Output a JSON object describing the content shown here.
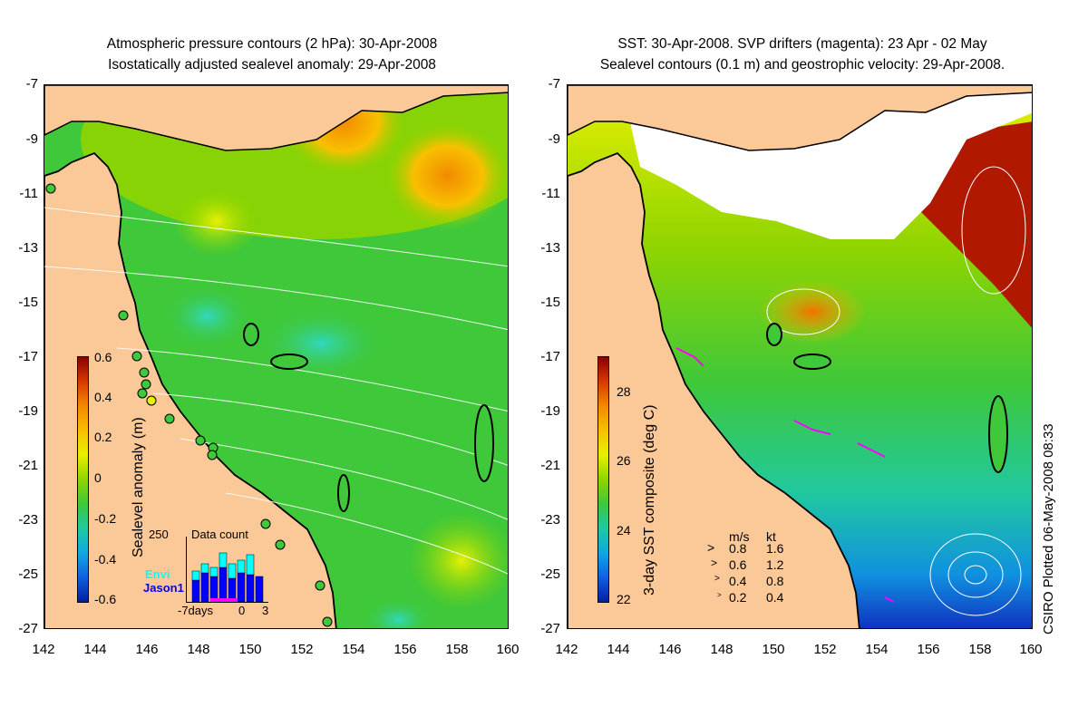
{
  "left_panel": {
    "title_line1": "Atmospheric pressure contours (2 hPa): 30-Apr-2008",
    "title_line2": "Isostatically adjusted sealevel anomaly: 29-Apr-2008",
    "colorbar_title": "Sealevel anomaly (m)",
    "colorbar_ticks": [
      "0.6",
      "0.4",
      "0.2",
      "0",
      "-0.2",
      "-0.4",
      "-0.6"
    ],
    "inset": {
      "title": "Data count",
      "ymax": "250",
      "legend_envi": "Envi",
      "legend_jason": "Jason1",
      "xlabel_left": "-7days",
      "xlabel_mid": "0",
      "xlabel_right": "3",
      "envi_color": "#00ffff",
      "jason_color": "#0000ff"
    }
  },
  "right_panel": {
    "title_line1": "SST: 30-Apr-2008. SVP drifters (magenta): 23 Apr - 02 May",
    "title_line2": "Sealevel contours (0.1 m) and geostrophic velocity: 29-Apr-2008.",
    "colorbar_title": "3-day SST composite (deg C)",
    "colorbar_ticks": [
      "28",
      "26",
      "24",
      "22"
    ],
    "velocity_legend": {
      "header_ms": "m/s",
      "header_kt": "kt",
      "rows": [
        {
          "ms": "0.8",
          "kt": "1.6"
        },
        {
          "ms": "0.6",
          "kt": "1.2"
        },
        {
          "ms": "0.4",
          "kt": "0.8"
        },
        {
          "ms": "0.2",
          "kt": "0.4"
        }
      ]
    }
  },
  "axes": {
    "y_ticks": [
      "-7",
      "-9",
      "-11",
      "-13",
      "-15",
      "-17",
      "-19",
      "-21",
      "-23",
      "-25",
      "-27"
    ],
    "x_ticks": [
      "142",
      "144",
      "146",
      "148",
      "150",
      "152",
      "154",
      "156",
      "158",
      "160"
    ]
  },
  "credit": "CSIRO Plotted 06-May-2008 08:33",
  "colors": {
    "land": "#fbc898",
    "ocean_green": "#3ec83a",
    "coast": "#000000"
  }
}
